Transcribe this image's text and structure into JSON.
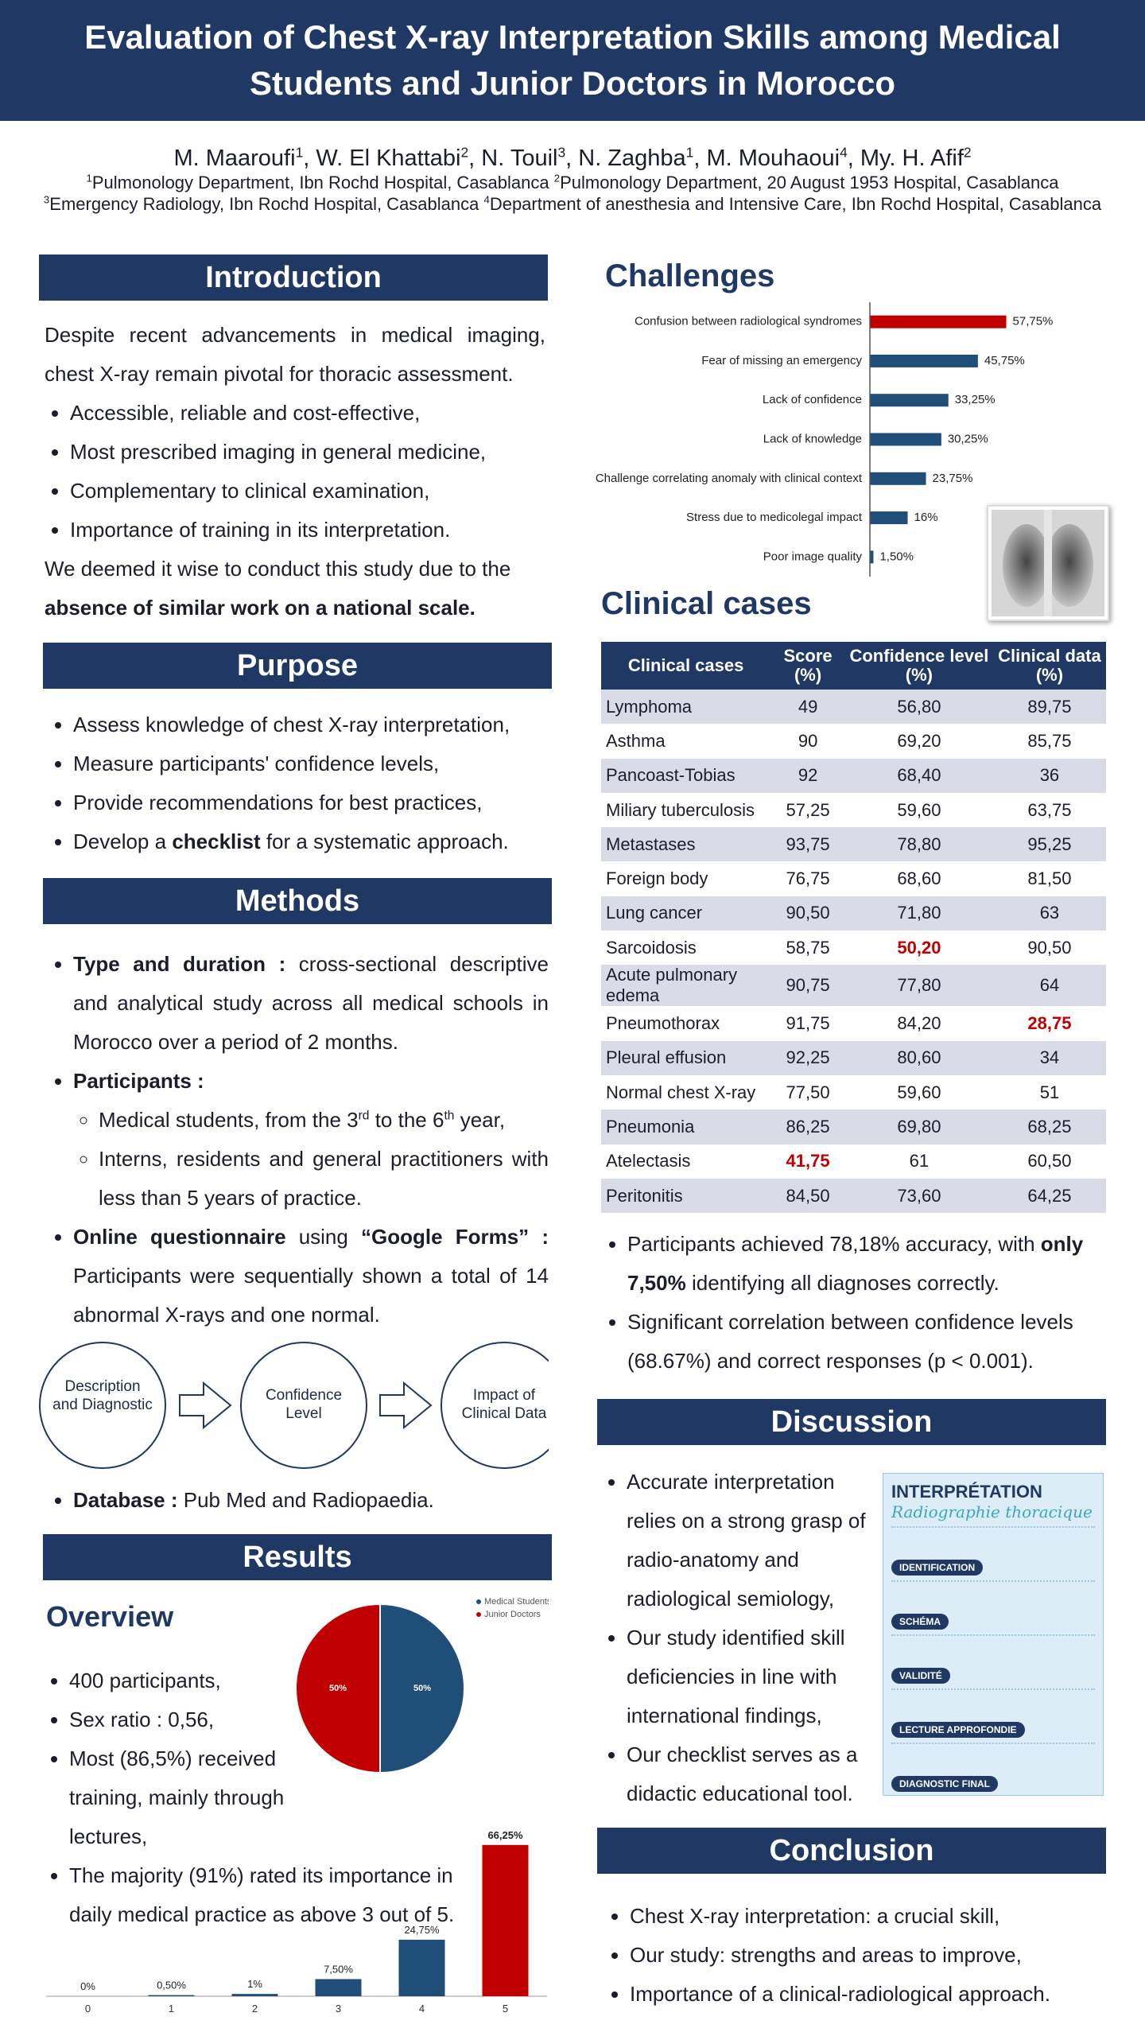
{
  "header": {
    "title": "Evaluation of Chest X-ray Interpretation Skills among Medical Students and Junior Doctors in Morocco",
    "authors": [
      {
        "text": "M. Maaroufi"
      },
      {
        "text": "1",
        "sup": true
      },
      {
        "text": ", W. El Khattabi"
      },
      {
        "text": "2",
        "sup": true
      },
      {
        "text": ", N. Touil"
      },
      {
        "text": "3",
        "sup": true
      },
      {
        "text": ", N. Zaghba"
      },
      {
        "text": "1",
        "sup": true
      },
      {
        "text": ", M. Mouhaoui"
      },
      {
        "text": "4",
        "sup": true
      },
      {
        "text": ", My. H. Afif"
      },
      {
        "text": "2",
        "sup": true
      }
    ],
    "affiliations_1": [
      {
        "text": "1",
        "sup": true
      },
      {
        "text": "Pulmonology Department, Ibn Rochd Hospital, Casablanca "
      },
      {
        "text": "2",
        "sup": true
      },
      {
        "text": "Pulmonology Department, 20 August 1953 Hospital, Casablanca"
      }
    ],
    "affiliations_2": [
      {
        "text": "3",
        "sup": true
      },
      {
        "text": "Emergency Radiology, Ibn Rochd Hospital, Casablanca "
      },
      {
        "text": "4",
        "sup": true
      },
      {
        "text": "Department of anesthesia and Intensive Care, Ibn Rochd Hospital, Casablanca"
      }
    ]
  },
  "introduction": {
    "heading": "Introduction",
    "intro": "Despite recent advancements in medical imaging, chest X-ray remain pivotal for thoracic assessment.",
    "bullets": [
      "Accessible, reliable and cost-effective,",
      "Most prescribed imaging in general medicine,",
      "Complementary to clinical examination,",
      "Importance of training in its interpretation."
    ],
    "closing": [
      {
        "text": "We deemed it wise to conduct this study due to the "
      },
      {
        "text": "absence of similar work on a national scale.",
        "bold": true
      }
    ]
  },
  "purpose": {
    "heading": "Purpose",
    "bullets": [
      "Assess knowledge of chest X-ray interpretation,",
      "Measure participants' confidence levels,",
      "Provide recommendations for best practices,",
      [
        {
          "text": "Develop a "
        },
        {
          "text": "checklist",
          "bold": true
        },
        {
          "text": " for a systematic approach."
        }
      ]
    ]
  },
  "methods": {
    "heading": "Methods",
    "items": [
      [
        {
          "text": "Type and duration :",
          "bold": true
        },
        {
          "text": " cross-sectional descriptive and analytical study across all medical schools in Morocco over a period of 2 months."
        }
      ],
      {
        "parts": [
          {
            "text": "Participants :",
            "bold": true
          }
        ],
        "items": [
          [
            {
              "text": "Medical students, from the 3"
            },
            {
              "text": "rd",
              "sup": true
            },
            {
              "text": " to the 6"
            },
            {
              "text": "th",
              "sup": true
            },
            {
              "text": " year,"
            }
          ],
          "Interns, residents and general practitioners with less than 5 years of practice."
        ]
      },
      [
        {
          "text": "Online questionnaire",
          "bold": true
        },
        {
          "text": " using "
        },
        {
          "text": "“Google Forms” :",
          "bold": true
        },
        {
          "text": " Participants were sequentially shown a total of 14 abnormal X-rays and one normal."
        }
      ]
    ],
    "flow": [
      "Description and Diagnostic",
      "Confidence Level",
      "Impact of Clinical Data"
    ],
    "database": [
      [
        {
          "text": "Database :",
          "bold": true
        },
        {
          "text": " Pub Med and Radiopaedia."
        }
      ]
    ]
  },
  "results": {
    "heading": "Results",
    "overview": "Overview",
    "bullets": [
      "400 participants,",
      "Sex ratio : 0,56,",
      "Most (86,5%) received training, mainly through lectures,",
      "The majority (91%) rated its importance in daily medical practice as above 3 out of 5."
    ]
  },
  "chart_data": [
    {
      "type": "bar",
      "orientation": "horizontal",
      "title": "Challenges",
      "categories": [
        "Confusion between radiological syndromes",
        "Fear of missing an emergency",
        "Lack of confidence",
        "Lack of knowledge",
        "Challenge correlating anomaly with clinical context",
        "Stress due to medicolegal impact",
        "Poor image quality"
      ],
      "values": [
        57.75,
        45.75,
        33.25,
        30.25,
        23.75,
        16,
        1.5
      ],
      "value_labels": [
        "57,75%",
        "45,75%",
        "33,25%",
        "30,25%",
        "23,75%",
        "16%",
        "1,50%"
      ],
      "colors": [
        "#c00000",
        "#1f4e79",
        "#1f4e79",
        "#1f4e79",
        "#1f4e79",
        "#1f4e79",
        "#1f4e79"
      ],
      "xlim": [
        0,
        100
      ]
    },
    {
      "type": "pie",
      "categories": [
        "Medical Students",
        "Junior Doctors"
      ],
      "values": [
        50,
        50
      ],
      "value_labels": [
        "50%",
        "50%"
      ],
      "colors": [
        "#1f4e79",
        "#c00000"
      ],
      "legend": "top-right"
    },
    {
      "type": "bar",
      "orientation": "vertical",
      "categories": [
        "0",
        "1",
        "2",
        "3",
        "4",
        "5"
      ],
      "values": [
        0,
        0.5,
        1,
        7.5,
        24.75,
        66.25
      ],
      "value_labels": [
        "0%",
        "0,50%",
        "1%",
        "7,50%",
        "24,75%",
        "66,25%"
      ],
      "colors": [
        "#1f4e79",
        "#1f4e79",
        "#1f4e79",
        "#1f4e79",
        "#1f4e79",
        "#c00000"
      ],
      "ylim": [
        0,
        70
      ]
    }
  ],
  "clinical_cases": {
    "heading": "Clinical cases",
    "columns": [
      "Clinical cases",
      "Score (%)",
      "Confidence level (%)",
      "Clinical data (%)"
    ],
    "rows": [
      [
        "Lymphoma",
        "49",
        "56,80",
        "89,75"
      ],
      [
        "Asthma",
        "90",
        "69,20",
        "85,75"
      ],
      [
        "Pancoast-Tobias",
        "92",
        "68,40",
        "36"
      ],
      [
        "Miliary tuberculosis",
        "57,25",
        "59,60",
        "63,75"
      ],
      [
        "Metastases",
        "93,75",
        "78,80",
        "95,25"
      ],
      [
        "Foreign body",
        "76,75",
        "68,60",
        "81,50"
      ],
      [
        "Lung cancer",
        "90,50",
        "71,80",
        "63"
      ],
      [
        "Sarcoidosis",
        "58,75",
        {
          "text": "50,20",
          "color": "#c00000"
        },
        "90,50"
      ],
      [
        "Acute pulmonary edema",
        "90,75",
        "77,80",
        "64"
      ],
      [
        "Pneumothorax",
        "91,75",
        "84,20",
        {
          "text": "28,75",
          "color": "#c00000"
        }
      ],
      [
        "Pleural effusion",
        "92,25",
        "80,60",
        "34"
      ],
      [
        "Normal chest X-ray",
        "77,50",
        "59,60",
        "51"
      ],
      [
        "Pneumonia",
        "86,25",
        "69,80",
        "68,25"
      ],
      [
        "Atelectasis",
        {
          "text": "41,75",
          "color": "#c00000"
        },
        "61",
        "60,50"
      ],
      [
        "Peritonitis",
        "84,50",
        "73,60",
        "64,25"
      ]
    ],
    "findings": [
      [
        {
          "text": "Participants achieved 78,18% accuracy, with "
        },
        {
          "text": "only 7,50%",
          "bold": true
        },
        {
          "text": " identifying all diagnoses correctly."
        }
      ],
      "Significant correlation between confidence levels (68.67%) and correct responses (p < 0.001)."
    ]
  },
  "discussion": {
    "heading": "Discussion",
    "bullets": [
      "Accurate interpretation relies on a strong grasp of radio-anatomy and radiological semiology,",
      "Our study identified skill deficiencies in line with international findings,",
      "Our checklist serves as a didactic educational tool."
    ],
    "checklist": {
      "title": "INTERPRÉTATION",
      "subtitle": "Radiographie thoracique",
      "sections": [
        "IDENTIFICATION",
        "SCHÉMA",
        "VALIDITÉ",
        "LECTURE APPROFONDIE",
        "DIAGNOSTIC FINAL"
      ]
    }
  },
  "conclusion": {
    "heading": "Conclusion",
    "bullets": [
      "Chest X-ray interpretation: a crucial skill,",
      "Our study: strengths and areas to improve,",
      "Importance of a clinical-radiological approach."
    ]
  }
}
